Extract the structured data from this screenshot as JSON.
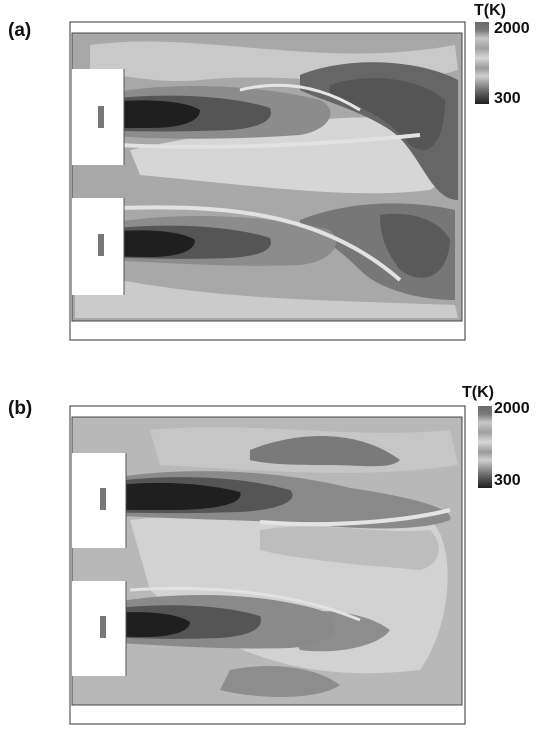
{
  "panels": [
    {
      "label": "(a)",
      "colorbar": {
        "title": "T(K)",
        "max_label": "2000",
        "min_label": "300"
      }
    },
    {
      "label": "(b)",
      "colorbar": {
        "title": "T(K)",
        "max_label": "2000",
        "min_label": "300"
      }
    }
  ],
  "colors": {
    "background": "#ffffff",
    "domain_base": "#a6a6a6",
    "colorbar_ramp": [
      "#6a6a6a",
      "#c8c8c8",
      "#9a9a9a",
      "#dcdcdc",
      "#8a8a8a",
      "#b0b0b0",
      "#2a2a2a"
    ]
  }
}
